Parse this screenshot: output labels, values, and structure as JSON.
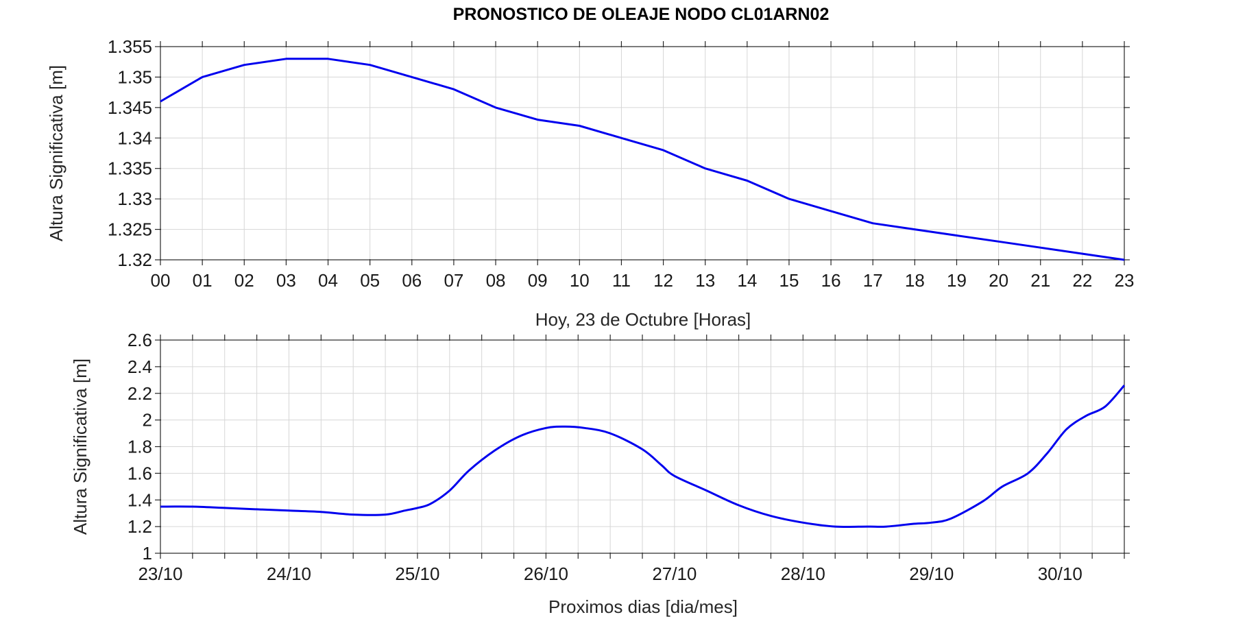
{
  "title": "PRONOSTICO DE OLEAJE NODO CL01ARN02",
  "colors": {
    "series": "#0000ee",
    "grid": "#d6d6d6",
    "axis": "#262626"
  },
  "chart_data": [
    {
      "type": "line",
      "xlabel": "Hoy, 23 de   Octubre   [Horas]",
      "ylabel": "Altura Significativa [m]",
      "categories": [
        "00",
        "01",
        "02",
        "03",
        "04",
        "05",
        "06",
        "07",
        "08",
        "09",
        "10",
        "11",
        "12",
        "13",
        "14",
        "15",
        "16",
        "17",
        "18",
        "19",
        "20",
        "21",
        "22",
        "23"
      ],
      "values": [
        1.346,
        1.35,
        1.352,
        1.353,
        1.353,
        1.352,
        1.35,
        1.348,
        1.345,
        1.343,
        1.342,
        1.34,
        1.338,
        1.335,
        1.333,
        1.33,
        1.328,
        1.326,
        1.325,
        1.324,
        1.323,
        1.322,
        1.321,
        1.32
      ],
      "yticks": [
        "1.32",
        "1.325",
        "1.33",
        "1.335",
        "1.34",
        "1.345",
        "1.35",
        "1.355"
      ],
      "ylim": [
        1.32,
        1.355
      ],
      "grid": true
    },
    {
      "type": "line",
      "xlabel": "Proximos dias [dia/mes]",
      "ylabel": "Altura Significativa [m]",
      "xticklabels": [
        "23/10",
        "24/10",
        "25/10",
        "26/10",
        "27/10",
        "28/10",
        "29/10",
        "30/10"
      ],
      "xlim": [
        0,
        7.5
      ],
      "x": [
        0,
        0.25,
        0.5,
        0.75,
        1.0,
        1.25,
        1.5,
        1.75,
        1.9,
        2.0,
        2.1,
        2.25,
        2.4,
        2.6,
        2.8,
        3.0,
        3.15,
        3.3,
        3.5,
        3.75,
        3.9,
        4.0,
        4.25,
        4.5,
        4.75,
        5.0,
        5.25,
        5.5,
        5.65,
        5.85,
        6.0,
        6.15,
        6.4,
        6.55,
        6.75,
        6.9,
        7.05,
        7.2,
        7.35,
        7.5
      ],
      "values": [
        1.35,
        1.35,
        1.34,
        1.33,
        1.32,
        1.31,
        1.29,
        1.29,
        1.32,
        1.34,
        1.37,
        1.47,
        1.62,
        1.77,
        1.88,
        1.94,
        1.95,
        1.94,
        1.9,
        1.78,
        1.66,
        1.58,
        1.47,
        1.36,
        1.28,
        1.23,
        1.2,
        1.2,
        1.2,
        1.22,
        1.23,
        1.26,
        1.39,
        1.5,
        1.6,
        1.75,
        1.93,
        2.03,
        2.1,
        2.26
      ],
      "yticks": [
        "1",
        "1.2",
        "1.4",
        "1.6",
        "1.8",
        "2",
        "2.2",
        "2.4",
        "2.6"
      ],
      "ylim": [
        1,
        2.6
      ],
      "grid": true
    }
  ]
}
